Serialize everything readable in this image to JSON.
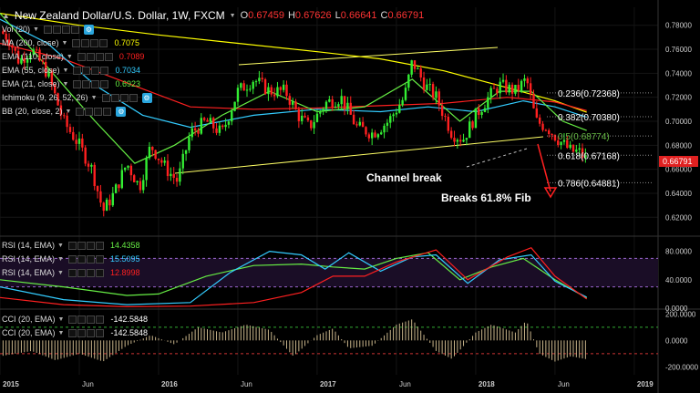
{
  "header": {
    "symbol": "New Zealand Dollar/U.S. Dollar, 1W, FXCM",
    "ohlc": [
      {
        "k": "O",
        "v": "0.67459"
      },
      {
        "k": "H",
        "v": "0.67626"
      },
      {
        "k": "L",
        "v": "0.66641"
      },
      {
        "k": "C",
        "v": "0.66791"
      }
    ]
  },
  "legend": [
    {
      "label": "Vol (20)",
      "value": "",
      "color": "#dddddd",
      "gear": true
    },
    {
      "label": "MA (200, close)",
      "value": "0.7075",
      "color": "#ffff00",
      "gear": false
    },
    {
      "label": "EMA (110, close)",
      "value": "0.7089",
      "color": "#ff2020",
      "gear": false
    },
    {
      "label": "EMA (55, close)",
      "value": "0.7034",
      "color": "#33ccff",
      "gear": false
    },
    {
      "label": "EMA (21, close)",
      "value": "0.6923",
      "color": "#66ee44",
      "gear": false
    },
    {
      "label": "Ichimoku (9, 26, 52, 26)",
      "value": "",
      "color": "#dddddd",
      "gear": true
    },
    {
      "label": "BB (20, close, 2)",
      "value": "",
      "color": "#dddddd",
      "gear": true
    }
  ],
  "rsi_legend": [
    {
      "label": "RSI (14, EMA)",
      "value": "14.4358",
      "color": "#66ee44"
    },
    {
      "label": "RSI (14, EMA)",
      "value": "15.5095",
      "color": "#33ccff"
    },
    {
      "label": "RSI (14, EMA)",
      "value": "12.8998",
      "color": "#ff2020"
    }
  ],
  "cci_legend": [
    {
      "label": "CCI (20, EMA)",
      "value": "-142.5848",
      "color": "#ffffff"
    },
    {
      "label": "CCI (20, EMA)",
      "value": "-142.5848",
      "color": "#ffffff"
    }
  ],
  "annotations": {
    "channel_break": "Channel break",
    "breaks_fib": "Breaks 61.8% Fib"
  },
  "fib_levels": [
    {
      "label": "0.236(0.72368)",
      "value": 0.72368,
      "color": "#ffffff"
    },
    {
      "label": "0.382(0.70380)",
      "value": 0.7038,
      "color": "#ffffff"
    },
    {
      "label": "0.5(0.68774)",
      "value": 0.68774,
      "color": "#66bb44"
    },
    {
      "label": "0.618(0.67168)",
      "value": 0.67168,
      "color": "#ffffff"
    },
    {
      "label": "0.786(0.64881)",
      "value": 0.64881,
      "color": "#ffffff"
    }
  ],
  "price_axis": {
    "ticks": [
      "0.78000",
      "0.76000",
      "0.74000",
      "0.72000",
      "0.70000",
      "0.68000",
      "0.66000",
      "0.64000",
      "0.62000"
    ],
    "min": 0.605,
    "max": 0.795,
    "current": "0.66791",
    "current_value": 0.66791
  },
  "rsi_axis": {
    "ticks": [
      "80.0000",
      "40.0000",
      "0.0000"
    ],
    "min": 0,
    "max": 100,
    "bands": [
      70,
      30
    ]
  },
  "cci_axis": {
    "ticks": [
      "200.0000",
      "0.0000",
      "-200.0000"
    ],
    "min": -260,
    "max": 230,
    "bands": [
      100,
      -100
    ]
  },
  "time_axis": {
    "labels": [
      "2015",
      "Jun",
      "2016",
      "Jun",
      "2017",
      "Jun",
      "2018",
      "Jun",
      "2019"
    ],
    "positions": [
      0,
      0.5,
      1,
      1.5,
      2,
      2.5,
      3,
      3.5,
      4
    ]
  },
  "chart_data": {
    "type": "candlestick",
    "x_start": 2015.0,
    "x_end": 2019.15,
    "series": [
      {
        "name": "MA (200, close)",
        "points": [
          [
            2015.0,
            0.79
          ],
          [
            2015.5,
            0.78
          ],
          [
            2016.0,
            0.772
          ],
          [
            2016.5,
            0.765
          ],
          [
            2017.0,
            0.758
          ],
          [
            2017.4,
            0.752
          ],
          [
            2017.8,
            0.742
          ],
          [
            2018.2,
            0.728
          ],
          [
            2018.5,
            0.717
          ],
          [
            2018.7,
            0.7075
          ]
        ]
      },
      {
        "name": "EMA (110, close)",
        "points": [
          [
            2015.0,
            0.765
          ],
          [
            2015.4,
            0.752
          ],
          [
            2015.8,
            0.732
          ],
          [
            2016.2,
            0.712
          ],
          [
            2016.6,
            0.71
          ],
          [
            2017.0,
            0.711
          ],
          [
            2017.4,
            0.713
          ],
          [
            2017.8,
            0.715
          ],
          [
            2018.2,
            0.72
          ],
          [
            2018.5,
            0.716
          ],
          [
            2018.7,
            0.7089
          ]
        ]
      },
      {
        "name": "EMA (55, close)",
        "points": [
          [
            2015.0,
            0.785
          ],
          [
            2015.3,
            0.765
          ],
          [
            2015.6,
            0.73
          ],
          [
            2015.9,
            0.705
          ],
          [
            2016.2,
            0.695
          ],
          [
            2016.6,
            0.705
          ],
          [
            2017.0,
            0.71
          ],
          [
            2017.4,
            0.708
          ],
          [
            2017.7,
            0.712
          ],
          [
            2018.0,
            0.708
          ],
          [
            2018.3,
            0.717
          ],
          [
            2018.5,
            0.712
          ],
          [
            2018.7,
            0.7034
          ]
        ]
      },
      {
        "name": "EMA (21, close)",
        "points": [
          [
            2015.0,
            0.79
          ],
          [
            2015.3,
            0.745
          ],
          [
            2015.6,
            0.7
          ],
          [
            2015.85,
            0.665
          ],
          [
            2016.1,
            0.68
          ],
          [
            2016.4,
            0.705
          ],
          [
            2016.7,
            0.725
          ],
          [
            2017.0,
            0.708
          ],
          [
            2017.3,
            0.712
          ],
          [
            2017.6,
            0.735
          ],
          [
            2017.9,
            0.7
          ],
          [
            2018.15,
            0.725
          ],
          [
            2018.35,
            0.725
          ],
          [
            2018.55,
            0.7
          ],
          [
            2018.7,
            0.6923
          ]
        ]
      }
    ],
    "candles_close_path": [
      [
        2015.0,
        0.775
      ],
      [
        2015.05,
        0.77
      ],
      [
        2015.12,
        0.75
      ],
      [
        2015.2,
        0.76
      ],
      [
        2015.3,
        0.74
      ],
      [
        2015.4,
        0.7
      ],
      [
        2015.5,
        0.68
      ],
      [
        2015.58,
        0.66
      ],
      [
        2015.65,
        0.625
      ],
      [
        2015.72,
        0.64
      ],
      [
        2015.8,
        0.665
      ],
      [
        2015.88,
        0.645
      ],
      [
        2015.95,
        0.68
      ],
      [
        2016.05,
        0.66
      ],
      [
        2016.12,
        0.65
      ],
      [
        2016.2,
        0.69
      ],
      [
        2016.3,
        0.7
      ],
      [
        2016.4,
        0.69
      ],
      [
        2016.5,
        0.725
      ],
      [
        2016.6,
        0.735
      ],
      [
        2016.7,
        0.725
      ],
      [
        2016.8,
        0.725
      ],
      [
        2016.88,
        0.705
      ],
      [
        2016.95,
        0.695
      ],
      [
        2017.05,
        0.715
      ],
      [
        2017.15,
        0.72
      ],
      [
        2017.25,
        0.695
      ],
      [
        2017.35,
        0.69
      ],
      [
        2017.45,
        0.7
      ],
      [
        2017.55,
        0.72
      ],
      [
        2017.6,
        0.75
      ],
      [
        2017.68,
        0.73
      ],
      [
        2017.75,
        0.72
      ],
      [
        2017.85,
        0.69
      ],
      [
        2017.92,
        0.685
      ],
      [
        2018.0,
        0.705
      ],
      [
        2018.08,
        0.72
      ],
      [
        2018.15,
        0.73
      ],
      [
        2018.25,
        0.725
      ],
      [
        2018.32,
        0.735
      ],
      [
        2018.38,
        0.7
      ],
      [
        2018.45,
        0.695
      ],
      [
        2018.52,
        0.685
      ],
      [
        2018.6,
        0.675
      ],
      [
        2018.65,
        0.67459
      ],
      [
        2018.7,
        0.66791
      ]
    ],
    "price_ylim": [
      0.605,
      0.795
    ]
  }
}
